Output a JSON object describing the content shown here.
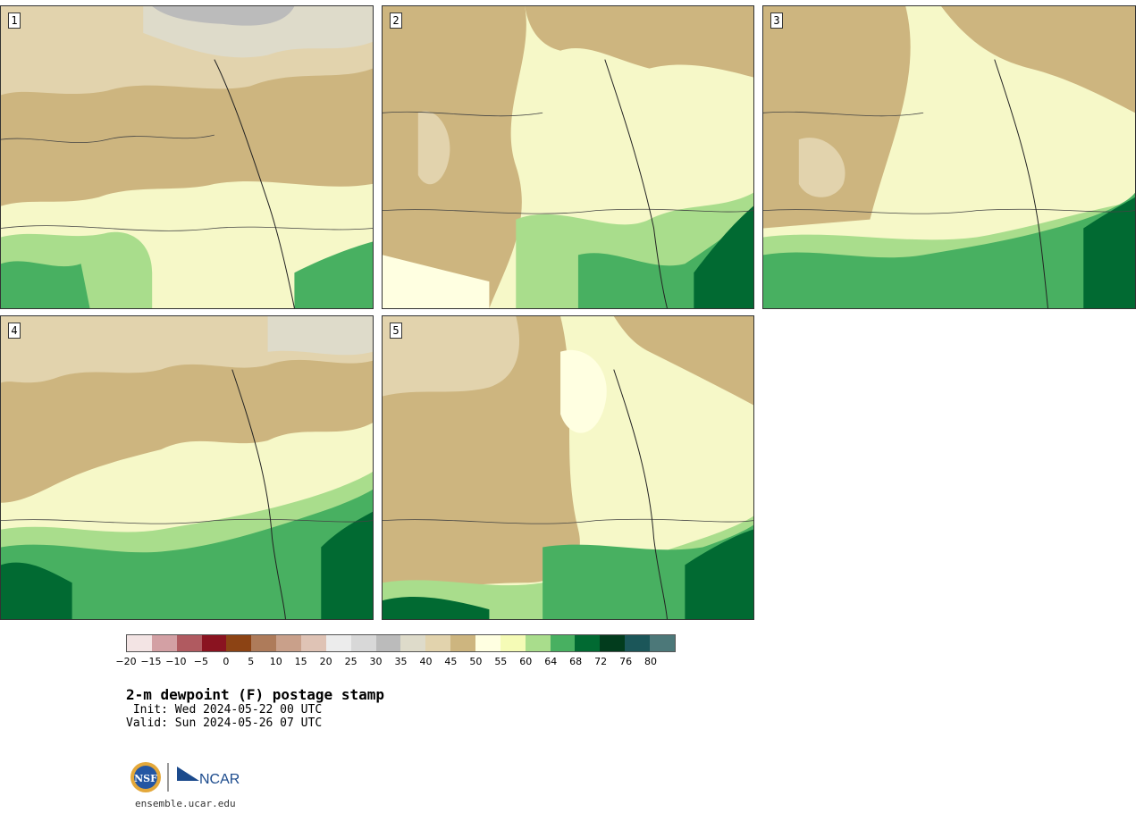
{
  "panels": [
    {
      "id": 1,
      "label": "1"
    },
    {
      "id": 2,
      "label": "2"
    },
    {
      "id": 3,
      "label": "3"
    },
    {
      "id": 4,
      "label": "4"
    },
    {
      "id": 5,
      "label": "5"
    }
  ],
  "colorbar": {
    "colors": [
      "#f3e4e4",
      "#d3a0a4",
      "#b05a60",
      "#8a1320",
      "#8c4314",
      "#ae7b5a",
      "#c9a08a",
      "#dfc3b5",
      "#ececec",
      "#d8d8d8",
      "#bbbbbb",
      "#dedbca",
      "#e2d3ad",
      "#cdb57f",
      "#ffffe1",
      "#f5fbb6",
      "#a9dd8c",
      "#48b061",
      "#016a32",
      "#023c1d",
      "#1b5659",
      "#4c7879"
    ],
    "tick_labels": [
      "−20",
      "−15",
      "−10",
      "−5",
      "0",
      "5",
      "10",
      "15",
      "20",
      "25",
      "30",
      "35",
      "40",
      "45",
      "50",
      "55",
      "60",
      "64",
      "68",
      "72",
      "76",
      "80"
    ]
  },
  "title": "2-m dewpoint (F) postage stamp",
  "init": " Init: Wed 2024-05-22 00 UTC",
  "valid": "Valid: Sun 2024-05-26 07 UTC",
  "logo": {
    "left_icon": "nsf-seal-icon",
    "right_text": "NCAR"
  },
  "footer_url": "ensemble.ucar.edu"
}
